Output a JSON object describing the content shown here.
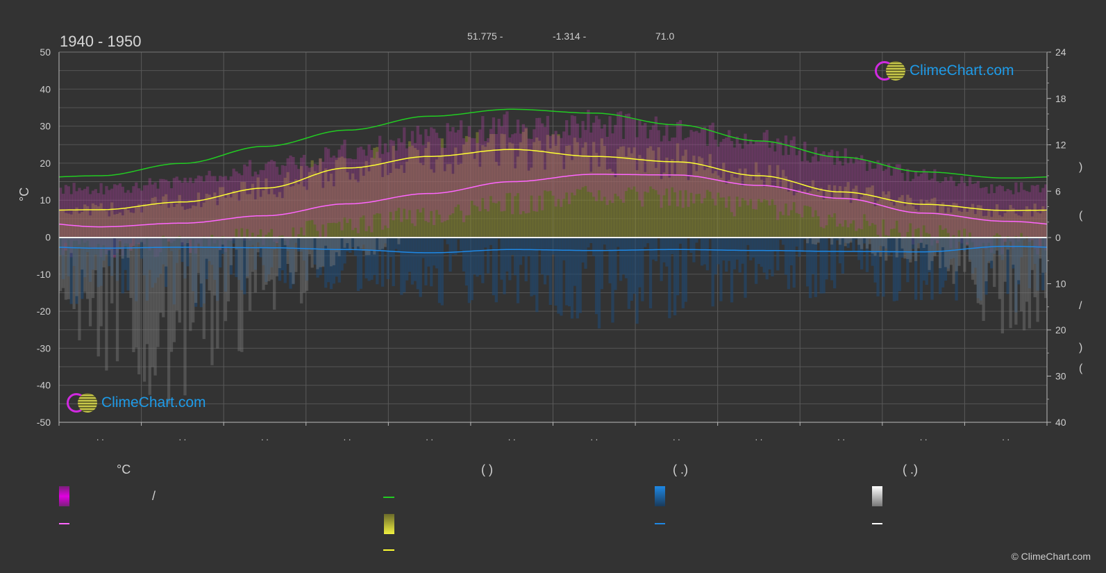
{
  "header": {
    "period": "1940 - 1950",
    "latitude": "51.775 -",
    "longitude": "-1.314 -",
    "elevation": "71.0"
  },
  "y_unit_left": "°C",
  "right_axis_marks": [
    ")",
    "(",
    "/",
    ")",
    "("
  ],
  "logo_text": "ClimeChart.com",
  "copyright": "© ClimeChart.com",
  "legend": {
    "col1_heading": "°C",
    "col2_heading": "(          )",
    "col3_heading": "(    .)",
    "col4_heading": "(    .)",
    "col1_row1_text": "/",
    "colors": {
      "temp_range": "#e000e0",
      "temp_mean": "#ff66ff",
      "daylight": "#22cc22",
      "sunshine": "#e8e840",
      "sunshine_mean": "#ffff33",
      "precip": "#1e88e5",
      "precip_mean": "#1e88e5",
      "snow": "#f0f0f0",
      "snow_mean": "#ffffff"
    }
  },
  "chart_data": {
    "type": "area",
    "x_tick_labels": [
      ". .",
      ". .",
      ". .",
      ". .",
      ". .",
      ". .",
      ". .",
      ". .",
      ". .",
      ". .",
      ". .",
      ". ."
    ],
    "left_axis": {
      "ylim": [
        -50,
        50
      ],
      "ticks": [
        50,
        40,
        30,
        20,
        10,
        0,
        -10,
        -20,
        -30,
        -40,
        -50
      ]
    },
    "right_axis_upper": {
      "ylim": [
        0,
        24
      ],
      "ticks": [
        24,
        18,
        12,
        6,
        0
      ]
    },
    "right_axis_lower": {
      "ylim": [
        0,
        40
      ],
      "ticks": [
        10,
        20,
        30,
        40
      ]
    },
    "months": [
      1,
      2,
      3,
      4,
      5,
      6,
      7,
      8,
      9,
      10,
      11,
      12
    ],
    "series": [
      {
        "key": "daylight_hours",
        "values": [
          8.0,
          9.6,
          11.8,
          13.9,
          15.7,
          16.6,
          16.1,
          14.6,
          12.5,
          10.4,
          8.5,
          7.7
        ]
      },
      {
        "key": "sunshine_hours",
        "values": [
          3.6,
          4.6,
          6.4,
          9.0,
          10.5,
          11.4,
          10.5,
          9.8,
          8.0,
          5.9,
          4.3,
          3.5
        ]
      },
      {
        "key": "temp_mean_c",
        "values": [
          2.8,
          3.8,
          5.8,
          9.0,
          11.8,
          15.0,
          17.0,
          16.8,
          14.0,
          10.5,
          6.5,
          4.3
        ]
      },
      {
        "key": "temp_band_top_c",
        "values": [
          13.5,
          15.5,
          19.5,
          24.0,
          28.0,
          31.0,
          31.5,
          30.0,
          26.5,
          22.0,
          17.0,
          13.5
        ]
      },
      {
        "key": "precip_mean_mm",
        "values": [
          2.3,
          2.1,
          2.2,
          2.6,
          3.3,
          2.6,
          2.8,
          2.6,
          2.8,
          3.0,
          3.1,
          1.9
        ]
      },
      {
        "key": "precip_max_mm",
        "values": [
          14,
          16,
          13,
          12,
          15,
          16,
          20,
          18,
          13,
          14,
          15,
          17
        ]
      },
      {
        "key": "snow_max_mm",
        "values": [
          30,
          38,
          22,
          5,
          0,
          0,
          0,
          0,
          0,
          2,
          8,
          22
        ]
      }
    ]
  }
}
